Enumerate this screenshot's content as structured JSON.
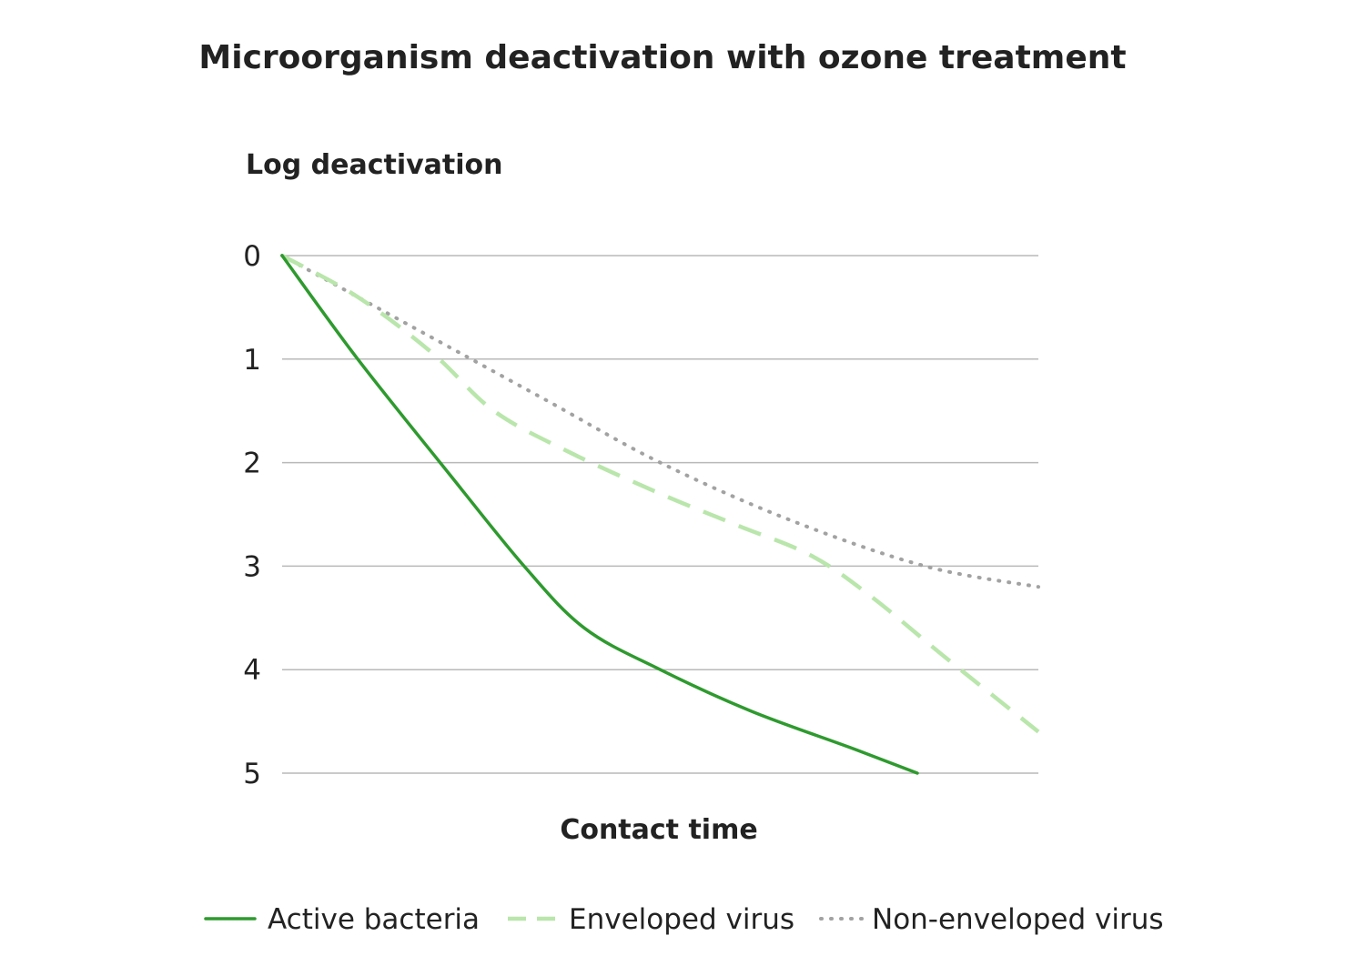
{
  "chart_data": {
    "type": "line",
    "title": "Microorganism deactivation with ozone treatment",
    "ylabel": "Log deactivation",
    "xlabel": "Contact time",
    "ylim": [
      0,
      5
    ],
    "xlim": [
      0,
      100
    ],
    "y_inverted": true,
    "y_ticks": [
      "0",
      "1",
      "2",
      "3",
      "4",
      "5"
    ],
    "grid": true,
    "legend_position": "bottom",
    "series": [
      {
        "name": "Active bacteria",
        "style": "solid",
        "color": "#2e9a2e",
        "x": [
          0,
          10,
          22,
          32,
          40,
          50,
          62,
          75,
          84
        ],
        "y": [
          0,
          1.0,
          2.1,
          3.0,
          3.6,
          4.0,
          4.4,
          4.75,
          5.0
        ]
      },
      {
        "name": "Enveloped virus",
        "style": "dashed",
        "color": "#b9e6ab",
        "x": [
          0,
          10,
          20,
          28,
          38,
          50,
          60,
          70,
          78,
          88,
          100
        ],
        "y": [
          0,
          0.4,
          0.95,
          1.5,
          1.9,
          2.3,
          2.6,
          2.9,
          3.3,
          3.9,
          4.6
        ]
      },
      {
        "name": "Non-enveloped virus",
        "style": "dotted",
        "color": "#a2a2a2",
        "x": [
          0,
          10,
          20,
          35,
          50,
          67,
          85,
          100
        ],
        "y": [
          0,
          0.4,
          0.8,
          1.4,
          2.0,
          2.55,
          3.0,
          3.2
        ]
      }
    ]
  }
}
